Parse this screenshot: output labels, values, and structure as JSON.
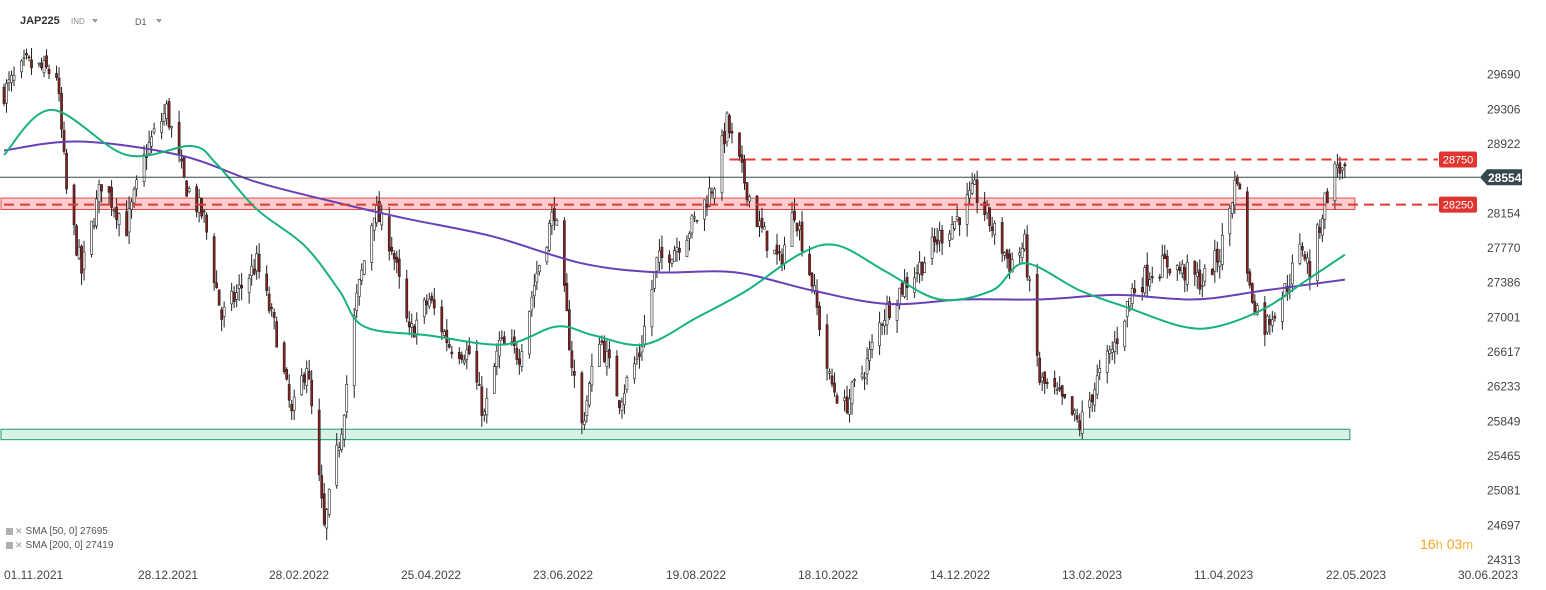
{
  "header": {
    "symbol": "JAP225",
    "market": "IND",
    "timeframe": "D1"
  },
  "legend": [
    {
      "icon": "list-icon",
      "label": "SMA",
      "params": "[50, 0]",
      "value": "27695",
      "color": "#17b27f"
    },
    {
      "icon": "list-icon",
      "label": "SMA",
      "params": "[200, 0]",
      "value": "27419",
      "color": "#6a3fb8"
    }
  ],
  "countdown": {
    "hours": "16",
    "h_unit": "h",
    "minutes": "03",
    "m_unit": "m"
  },
  "colors": {
    "bull_body": "#ffffff",
    "bear_body": "#8b1e1e",
    "wick": "#222222",
    "sma50": "#17b27f",
    "sma200": "#6a3fb8",
    "resistance": "#e53935",
    "zone_red_fill": "#f9c9c9",
    "zone_green_fill": "#d8f3e6",
    "zone_green_stroke": "#1f9a6a",
    "last_price": "#37474f",
    "text": "#444444"
  },
  "chart_data": {
    "type": "candlestick",
    "instrument": "JAP225",
    "timeframe": "D1",
    "x_range": [
      "2021-11-01",
      "2023-06-30"
    ],
    "x_ticks": [
      "01.11.2021",
      "28.12.2021",
      "28.02.2022",
      "25.04.2022",
      "23.06.2022",
      "19.08.2022",
      "18.10.2022",
      "14.12.2022",
      "13.02.2023",
      "11.04.2023",
      "22.05.2023",
      "30.06.2023"
    ],
    "y_ticks": [
      29690,
      29306,
      28922,
      28538,
      28154,
      27770,
      27386,
      27001,
      26617,
      26233,
      25849,
      25465,
      25081,
      24697,
      24313
    ],
    "y_range": [
      24313,
      30074
    ],
    "y_tick_labels": [
      "29690",
      "29306",
      "28922",
      "28538",
      "28154",
      "27770",
      "27386",
      "27001",
      "26617",
      "26233",
      "25849",
      "25465",
      "25081",
      "24697",
      "24313"
    ],
    "last_price": 28554,
    "last_price_label": "28554",
    "levels": [
      {
        "value": 28750,
        "label": "28750",
        "style": "dashed"
      },
      {
        "value": 28250,
        "label": "28250",
        "style": "dashed"
      }
    ],
    "zones": [
      {
        "from": 28196,
        "to": 28323,
        "color": "red"
      },
      {
        "from": 25646,
        "to": 25762,
        "color": "green"
      }
    ],
    "anchors": [
      [
        "2021-11-01",
        29500
      ],
      [
        "2021-11-10",
        29800
      ],
      [
        "2021-11-22",
        29700
      ],
      [
        "2021-11-26",
        28400
      ],
      [
        "2021-12-02",
        27500
      ],
      [
        "2021-12-10",
        28500
      ],
      [
        "2021-12-20",
        28000
      ],
      [
        "2021-12-28",
        28850
      ],
      [
        "2022-01-05",
        29300
      ],
      [
        "2022-01-12",
        28500
      ],
      [
        "2022-01-20",
        28100
      ],
      [
        "2022-01-27",
        27000
      ],
      [
        "2022-02-03",
        27300
      ],
      [
        "2022-02-10",
        27600
      ],
      [
        "2022-02-18",
        26800
      ],
      [
        "2022-02-24",
        25900
      ],
      [
        "2022-03-02",
        26500
      ],
      [
        "2022-03-09",
        24650
      ],
      [
        "2022-03-16",
        25800
      ],
      [
        "2022-03-22",
        27200
      ],
      [
        "2022-03-29",
        28200
      ],
      [
        "2022-04-05",
        27800
      ],
      [
        "2022-04-12",
        26800
      ],
      [
        "2022-04-20",
        27200
      ],
      [
        "2022-04-28",
        26700
      ],
      [
        "2022-05-06",
        26600
      ],
      [
        "2022-05-12",
        25900
      ],
      [
        "2022-05-18",
        26700
      ],
      [
        "2022-05-26",
        26600
      ],
      [
        "2022-06-02",
        27500
      ],
      [
        "2022-06-09",
        28200
      ],
      [
        "2022-06-16",
        26500
      ],
      [
        "2022-06-20",
        25800
      ],
      [
        "2022-06-27",
        26800
      ],
      [
        "2022-07-05",
        26100
      ],
      [
        "2022-07-13",
        26600
      ],
      [
        "2022-07-20",
        27600
      ],
      [
        "2022-07-28",
        27800
      ],
      [
        "2022-08-05",
        28100
      ],
      [
        "2022-08-12",
        28500
      ],
      [
        "2022-08-17",
        29150
      ],
      [
        "2022-08-23",
        28600
      ],
      [
        "2022-08-30",
        28000
      ],
      [
        "2022-09-07",
        27600
      ],
      [
        "2022-09-13",
        28200
      ],
      [
        "2022-09-20",
        27400
      ],
      [
        "2022-09-27",
        26300
      ],
      [
        "2022-10-03",
        26000
      ],
      [
        "2022-10-12",
        26500
      ],
      [
        "2022-10-18",
        27000
      ],
      [
        "2022-10-25",
        27300
      ],
      [
        "2022-11-03",
        27600
      ],
      [
        "2022-11-10",
        27900
      ],
      [
        "2022-11-17",
        28100
      ],
      [
        "2022-11-24",
        28400
      ],
      [
        "2022-12-01",
        28000
      ],
      [
        "2022-12-08",
        27600
      ],
      [
        "2022-12-14",
        27800
      ],
      [
        "2022-12-20",
        26300
      ],
      [
        "2022-12-28",
        26100
      ],
      [
        "2023-01-05",
        25800
      ],
      [
        "2023-01-12",
        26300
      ],
      [
        "2023-01-19",
        26700
      ],
      [
        "2023-01-26",
        27300
      ],
      [
        "2023-02-02",
        27500
      ],
      [
        "2023-02-09",
        27600
      ],
      [
        "2023-02-16",
        27500
      ],
      [
        "2023-02-23",
        27400
      ],
      [
        "2023-03-02",
        27700
      ],
      [
        "2023-03-09",
        28600
      ],
      [
        "2023-03-14",
        27300
      ],
      [
        "2023-03-20",
        26900
      ],
      [
        "2023-03-28",
        27300
      ],
      [
        "2023-04-04",
        27800
      ],
      [
        "2023-04-07",
        27500
      ],
      [
        "2023-04-13",
        28300
      ],
      [
        "2023-04-18",
        28700
      ],
      [
        "2023-04-21",
        28554
      ]
    ],
    "sma50_points": [
      [
        "2021-11-01",
        28800
      ],
      [
        "2021-11-20",
        29300
      ],
      [
        "2021-12-20",
        28800
      ],
      [
        "2022-01-15",
        28900
      ],
      [
        "2022-01-25",
        28700
      ],
      [
        "2022-02-10",
        28200
      ],
      [
        "2022-03-01",
        27800
      ],
      [
        "2022-03-15",
        27300
      ],
      [
        "2022-03-25",
        26900
      ],
      [
        "2022-04-20",
        26800
      ],
      [
        "2022-05-20",
        26700
      ],
      [
        "2022-06-10",
        26900
      ],
      [
        "2022-06-25",
        26800
      ],
      [
        "2022-07-15",
        26700
      ],
      [
        "2022-08-05",
        27000
      ],
      [
        "2022-08-25",
        27300
      ],
      [
        "2022-09-15",
        27700
      ],
      [
        "2022-09-30",
        27800
      ],
      [
        "2022-10-20",
        27500
      ],
      [
        "2022-11-10",
        27200
      ],
      [
        "2022-12-01",
        27300
      ],
      [
        "2022-12-14",
        27600
      ],
      [
        "2023-01-05",
        27300
      ],
      [
        "2023-01-25",
        27100
      ],
      [
        "2023-02-15",
        26900
      ],
      [
        "2023-03-01",
        26900
      ],
      [
        "2023-03-20",
        27100
      ],
      [
        "2023-04-05",
        27400
      ],
      [
        "2023-04-21",
        27695
      ]
    ],
    "sma200_points": [
      [
        "2021-11-01",
        28850
      ],
      [
        "2021-12-01",
        28950
      ],
      [
        "2022-01-10",
        28800
      ],
      [
        "2022-02-10",
        28500
      ],
      [
        "2022-03-10",
        28300
      ],
      [
        "2022-04-10",
        28100
      ],
      [
        "2022-05-15",
        27900
      ],
      [
        "2022-06-20",
        27600
      ],
      [
        "2022-07-20",
        27500
      ],
      [
        "2022-08-20",
        27500
      ],
      [
        "2022-09-20",
        27300
      ],
      [
        "2022-10-20",
        27150
      ],
      [
        "2022-11-20",
        27200
      ],
      [
        "2022-12-20",
        27200
      ],
      [
        "2023-01-20",
        27250
      ],
      [
        "2023-02-20",
        27200
      ],
      [
        "2023-03-20",
        27300
      ],
      [
        "2023-04-21",
        27419
      ]
    ]
  }
}
